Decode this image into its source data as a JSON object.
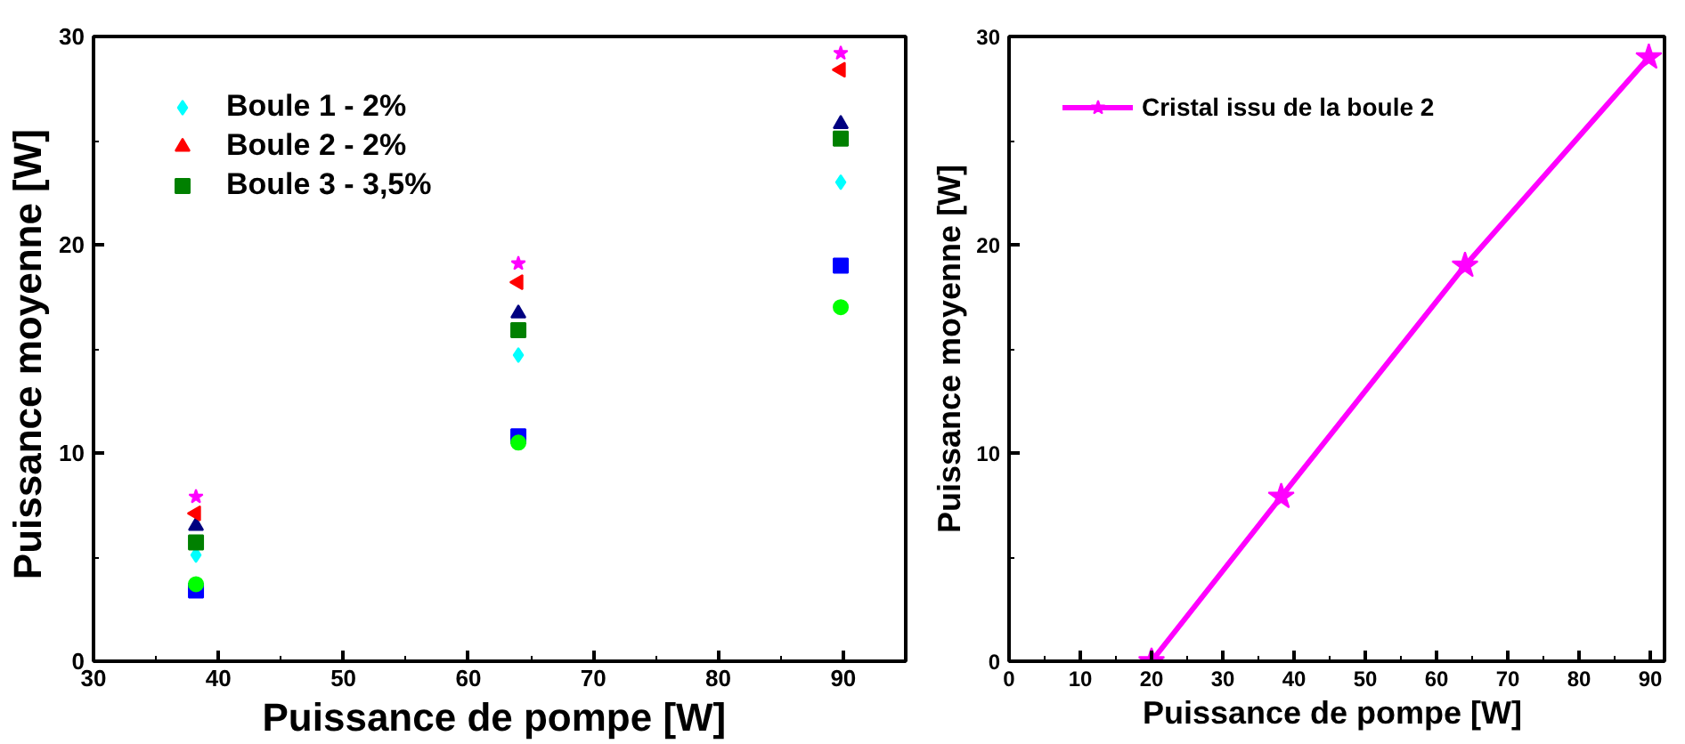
{
  "chart_data": [
    {
      "type": "scatter",
      "xlabel": "Puissance de pompe  [W]",
      "ylabel": "Puissance moyenne  [W]",
      "x": [
        38.2,
        64,
        89.8
      ],
      "xlim": [
        30,
        95
      ],
      "xticks": [
        30,
        40,
        50,
        60,
        70,
        80,
        90
      ],
      "ylim": [
        0,
        30
      ],
      "yticks": [
        0,
        10,
        20,
        30
      ],
      "legend": "top left",
      "grid": false,
      "series": [
        {
          "color": "#0000ff",
          "marker": "square",
          "values": [
            3.4,
            10.8,
            19.0
          ]
        },
        {
          "color": "#000080",
          "marker": "triangle",
          "values": [
            6.5,
            16.7,
            25.8
          ]
        },
        {
          "name": "Boule 1 - 2%",
          "color": "#00ffff",
          "marker": "diamond",
          "values": [
            5.1,
            14.7,
            23.0
          ]
        },
        {
          "color": "#ff00ff",
          "marker": "star",
          "values": [
            7.9,
            19.1,
            29.2
          ]
        },
        {
          "name": "Boule 2 - 2%",
          "color": "#ff0000",
          "marker": "triangle_left",
          "values": [
            7.1,
            18.2,
            28.4
          ]
        },
        {
          "color": "#00ff00",
          "marker": "circle",
          "values": [
            3.7,
            10.5,
            17.0
          ]
        },
        {
          "name": "Boule 3 - 3,5%",
          "color": "#008000",
          "marker": "square",
          "values": [
            5.7,
            15.9,
            25.1
          ]
        }
      ]
    },
    {
      "type": "line",
      "xlabel": "Puissance de pompe  [W]",
      "ylabel": "Puissance moyenne [W]",
      "x": [
        20,
        38.2,
        64,
        89.8
      ],
      "xlim": [
        0,
        92
      ],
      "xticks": [
        0,
        10,
        20,
        30,
        40,
        50,
        60,
        70,
        80,
        90
      ],
      "ylim": [
        0,
        30
      ],
      "yticks": [
        0,
        10,
        20,
        30
      ],
      "legend": "top left",
      "grid": false,
      "marker": "star",
      "line_style": "solid",
      "series": [
        {
          "name": "Cristal issu de la boule 2",
          "color": "#ff00ff",
          "values": [
            0,
            7.9,
            19,
            29
          ]
        }
      ]
    }
  ]
}
